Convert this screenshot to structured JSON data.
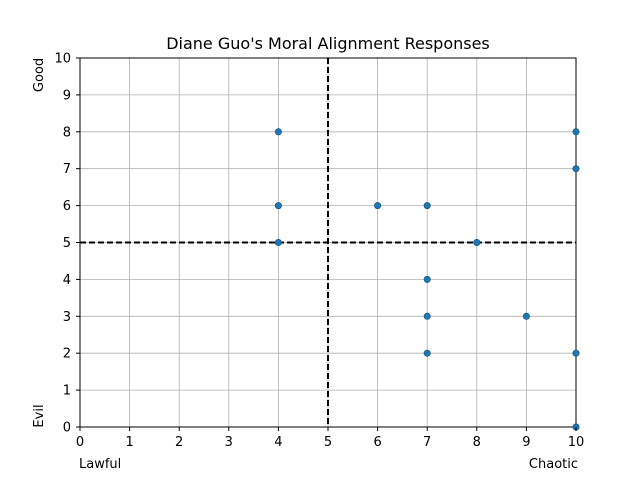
{
  "chart_data": {
    "type": "scatter",
    "title": "Diane Guo's Moral Alignment Responses",
    "xlim": [
      0,
      10
    ],
    "ylim": [
      0,
      10
    ],
    "x_ticks": [
      0,
      1,
      2,
      3,
      4,
      5,
      6,
      7,
      8,
      9,
      10
    ],
    "y_ticks": [
      0,
      1,
      2,
      3,
      4,
      5,
      6,
      7,
      8,
      9,
      10
    ],
    "grid": true,
    "x_end_labels": {
      "left": "Lawful",
      "right": "Chaotic"
    },
    "y_end_labels": {
      "top": "Good",
      "bottom": "Evil"
    },
    "reference_lines": {
      "x": 5,
      "y": 5,
      "style": "dashed",
      "color": "#000000"
    },
    "point_color": "#1f77b4",
    "points": [
      {
        "x": 4,
        "y": 8
      },
      {
        "x": 4,
        "y": 6
      },
      {
        "x": 4,
        "y": 5
      },
      {
        "x": 6,
        "y": 6
      },
      {
        "x": 7,
        "y": 6
      },
      {
        "x": 8,
        "y": 5
      },
      {
        "x": 7,
        "y": 4
      },
      {
        "x": 7,
        "y": 3
      },
      {
        "x": 7,
        "y": 2
      },
      {
        "x": 9,
        "y": 3
      },
      {
        "x": 10,
        "y": 8
      },
      {
        "x": 10,
        "y": 7
      },
      {
        "x": 10,
        "y": 2
      },
      {
        "x": 10,
        "y": 0
      }
    ]
  }
}
